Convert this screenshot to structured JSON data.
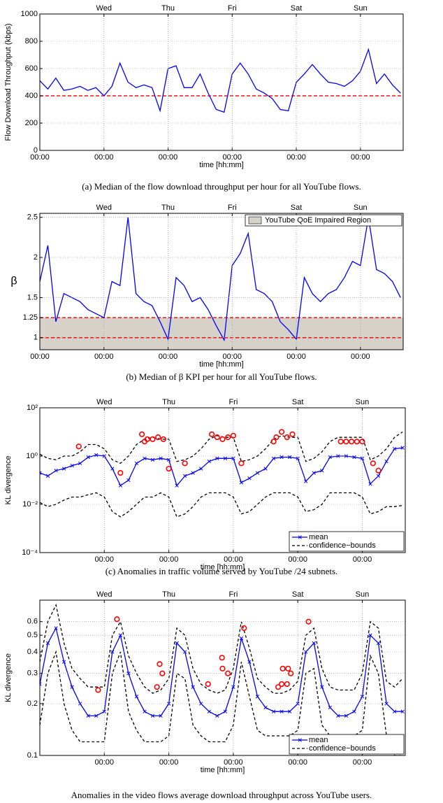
{
  "chart_data": [
    {
      "type": "line",
      "caption": "(a) Median of the flow download throughput per hour for all YouTube flows.",
      "ylabel": "Flow Download Throughput (kbps)",
      "xlabel": "time [hh:mm]",
      "xlim": [
        0,
        136
      ],
      "ylim": [
        0,
        1000
      ],
      "yticks": [
        0,
        200,
        400,
        600,
        800,
        1000
      ],
      "xticks": [
        {
          "value": 0,
          "label": "00:00"
        },
        {
          "value": 24,
          "label": "00:00"
        },
        {
          "value": 48,
          "label": "00:00"
        },
        {
          "value": 72,
          "label": "00:00"
        },
        {
          "value": 96,
          "label": "00:00"
        },
        {
          "value": 120,
          "label": "00:00"
        }
      ],
      "x2ticks": [
        {
          "value": 24,
          "label": "Wed"
        },
        {
          "value": 48,
          "label": "Thu"
        },
        {
          "value": 72,
          "label": "Fri"
        },
        {
          "value": 96,
          "label": "Sat"
        },
        {
          "value": 120,
          "label": "Sun"
        }
      ],
      "grid": true,
      "hlines": [
        400
      ],
      "hline_color": "#ff0000",
      "x": [
        0,
        3,
        6,
        9,
        12,
        15,
        18,
        21,
        24,
        27,
        30,
        33,
        36,
        39,
        42,
        45,
        48,
        51,
        54,
        57,
        60,
        63,
        66,
        69,
        72,
        75,
        78,
        81,
        84,
        87,
        90,
        93,
        96,
        99,
        102,
        105,
        108,
        111,
        114,
        117,
        120,
        123,
        126,
        129,
        132,
        135
      ],
      "series": [
        {
          "color": "#0000ff",
          "values": [
            510,
            450,
            530,
            440,
            450,
            470,
            440,
            460,
            400,
            470,
            640,
            500,
            460,
            480,
            460,
            290,
            600,
            620,
            460,
            460,
            560,
            420,
            300,
            280,
            560,
            640,
            560,
            450,
            420,
            380,
            300,
            290,
            500,
            560,
            630,
            560,
            500,
            490,
            470,
            510,
            580,
            740,
            490,
            560,
            480,
            420
          ]
        }
      ]
    },
    {
      "type": "line",
      "caption": "(b) Median of β KPI per hour for all YouTube flows.",
      "ylabel": "β",
      "xlabel": "time [hh:mm]",
      "xlim": [
        0,
        136
      ],
      "ylim": [
        0.85,
        2.55
      ],
      "yticks": [
        1,
        1.25,
        1.5,
        2,
        2.5
      ],
      "xticks": [
        {
          "value": 0,
          "label": "00:00"
        },
        {
          "value": 24,
          "label": "00:00"
        },
        {
          "value": 48,
          "label": "00:00"
        },
        {
          "value": 72,
          "label": "00:00"
        },
        {
          "value": 96,
          "label": "00:00"
        },
        {
          "value": 120,
          "label": "00:00"
        }
      ],
      "x2ticks": [
        {
          "value": 24,
          "label": "Wed"
        },
        {
          "value": 48,
          "label": "Thu"
        },
        {
          "value": 72,
          "label": "Fri"
        },
        {
          "value": 96,
          "label": "Sat"
        },
        {
          "value": 120,
          "label": "Sun"
        }
      ],
      "grid": true,
      "hlines": [
        1,
        1.25
      ],
      "hline_color": "#ff0000",
      "legend": "upper right",
      "region": {
        "name": "YouTube QoE Impaired Region",
        "upper": 1.25,
        "color": "#d6d1c9"
      },
      "x": [
        0,
        3,
        6,
        9,
        12,
        15,
        18,
        21,
        24,
        27,
        30,
        33,
        36,
        39,
        42,
        45,
        48,
        51,
        54,
        57,
        60,
        63,
        66,
        69,
        72,
        75,
        78,
        81,
        84,
        87,
        90,
        93,
        96,
        99,
        102,
        105,
        108,
        111,
        114,
        117,
        120,
        123,
        126,
        129,
        132,
        135
      ],
      "series": [
        {
          "color": "#0000ff",
          "values": [
            1.7,
            2.15,
            1.2,
            1.55,
            1.5,
            1.45,
            1.35,
            1.3,
            1.25,
            1.7,
            1.65,
            2.5,
            1.55,
            1.45,
            1.4,
            1.2,
            0.98,
            1.75,
            1.65,
            1.45,
            1.5,
            1.35,
            1.15,
            0.97,
            1.9,
            2.05,
            2.3,
            1.6,
            1.55,
            1.45,
            1.2,
            1.1,
            0.98,
            1.75,
            1.55,
            1.45,
            1.55,
            1.6,
            1.75,
            1.95,
            1.9,
            2.5,
            1.85,
            1.8,
            1.7,
            1.5
          ]
        }
      ]
    },
    {
      "type": "line",
      "caption": "(c) Anomalies in traffic volume served by YouTube /24 subnets.",
      "ylabel": "KL divergence",
      "xlabel": "time [hh:mm]",
      "yscale": "log",
      "xlim": [
        0,
        136
      ],
      "ylim": [
        0.0001,
        100
      ],
      "yticks": [
        {
          "value": 0.0001,
          "label": "10⁻⁴"
        },
        {
          "value": 0.01,
          "label": "10⁻²"
        },
        {
          "value": 1,
          "label": "10⁰"
        },
        {
          "value": 100,
          "label": "10²"
        }
      ],
      "xticks": [
        {
          "value": 24,
          "label": "00:00"
        },
        {
          "value": 48,
          "label": "00:00"
        },
        {
          "value": 72,
          "label": "00:00"
        },
        {
          "value": 96,
          "label": "00:00"
        },
        {
          "value": 120,
          "label": "00:00"
        }
      ],
      "x2ticks": [
        {
          "value": 24,
          "label": "Wed"
        },
        {
          "value": 48,
          "label": "Thu"
        },
        {
          "value": 72,
          "label": "Fri"
        },
        {
          "value": 96,
          "label": "Sat"
        },
        {
          "value": 120,
          "label": "Sun"
        }
      ],
      "grid": true,
      "legend": "lower right",
      "x": [
        0,
        3,
        6,
        9,
        12,
        15,
        18,
        21,
        24,
        27,
        30,
        33,
        36,
        39,
        42,
        45,
        48,
        51,
        54,
        57,
        60,
        63,
        66,
        69,
        72,
        75,
        78,
        81,
        84,
        87,
        90,
        93,
        96,
        99,
        102,
        105,
        108,
        111,
        114,
        117,
        120,
        123,
        126,
        129,
        132,
        135
      ],
      "series": [
        {
          "name": "mean",
          "color": "#0000ff",
          "marker": "x",
          "values": [
            0.2,
            0.15,
            0.25,
            0.3,
            0.4,
            0.5,
            0.9,
            1.1,
            1.0,
            0.3,
            0.06,
            0.1,
            0.5,
            0.8,
            0.7,
            0.8,
            0.7,
            0.06,
            0.15,
            0.2,
            0.3,
            0.6,
            0.8,
            0.8,
            0.8,
            0.08,
            0.12,
            0.2,
            0.3,
            0.8,
            0.9,
            0.9,
            0.8,
            0.09,
            0.2,
            0.25,
            0.9,
            1.0,
            1.0,
            0.9,
            0.8,
            0.07,
            0.15,
            0.6,
            2.0,
            2.2
          ]
        },
        {
          "name": "confidence−bounds",
          "color": "#000000",
          "dash": true,
          "values": [
            1.2,
            0.8,
            0.7,
            1.0,
            1.0,
            1.5,
            3,
            3,
            2,
            0.7,
            0.5,
            1,
            3,
            5,
            6,
            5,
            5,
            0.6,
            0.7,
            1,
            2,
            5,
            7,
            6,
            6,
            0.6,
            0.7,
            1,
            2,
            5,
            7,
            6,
            6,
            0.6,
            0.8,
            1.5,
            4,
            6,
            6,
            6,
            6,
            0.7,
            1,
            2,
            6,
            10
          ],
          "lower": [
            0.012,
            0.008,
            0.01,
            0.015,
            0.02,
            0.02,
            0.025,
            0.03,
            0.02,
            0.005,
            0.003,
            0.005,
            0.01,
            0.02,
            0.02,
            0.03,
            0.02,
            0.003,
            0.004,
            0.008,
            0.02,
            0.03,
            0.03,
            0.03,
            0.02,
            0.004,
            0.005,
            0.01,
            0.02,
            0.03,
            0.03,
            0.03,
            0.02,
            0.005,
            0.006,
            0.01,
            0.03,
            0.03,
            0.03,
            0.03,
            0.02,
            0.004,
            0.005,
            0.008,
            0.008,
            0.009
          ]
        }
      ],
      "anomalies": {
        "color": "#ff0000",
        "x": [
          14.5,
          30,
          38,
          39,
          40,
          42,
          44,
          46,
          48,
          54,
          64,
          66,
          68,
          70,
          72,
          75,
          87,
          88,
          90,
          92,
          94,
          112,
          114,
          116,
          118,
          120,
          124,
          126
        ],
        "values": [
          2.5,
          0.2,
          8,
          4,
          5,
          5,
          6,
          5,
          0.3,
          0.5,
          8,
          6,
          5,
          6,
          7,
          0.5,
          4,
          6,
          10,
          6,
          8,
          4,
          4,
          4,
          4,
          4,
          0.5,
          0.25
        ]
      }
    },
    {
      "type": "line",
      "caption": "Anomalies in the video flows average download throughput across YouTube users.",
      "ylabel": "KL divergence",
      "xlabel": "time [hh:mm]",
      "yscale": "log",
      "xlim": [
        0,
        136
      ],
      "ylim": [
        0.1,
        0.8
      ],
      "yticks": [
        0.1,
        0.2,
        0.3,
        0.4,
        0.5,
        0.6
      ],
      "xticks": [
        {
          "value": 24,
          "label": "00:00"
        },
        {
          "value": 48,
          "label": "00:00"
        },
        {
          "value": 72,
          "label": "00:00"
        },
        {
          "value": 96,
          "label": "00:00"
        },
        {
          "value": 120,
          "label": "00:00"
        }
      ],
      "x2ticks": [
        {
          "value": 24,
          "label": "Wed"
        },
        {
          "value": 48,
          "label": "Thu"
        },
        {
          "value": 72,
          "label": "Fri"
        },
        {
          "value": 96,
          "label": "Sat"
        },
        {
          "value": 120,
          "label": "Sun"
        }
      ],
      "grid": true,
      "legend": "lower right",
      "x": [
        0,
        3,
        6,
        9,
        12,
        15,
        18,
        21,
        24,
        27,
        30,
        33,
        36,
        39,
        42,
        45,
        48,
        51,
        54,
        57,
        60,
        63,
        66,
        69,
        72,
        75,
        78,
        81,
        84,
        87,
        90,
        93,
        96,
        99,
        102,
        105,
        108,
        111,
        114,
        117,
        120,
        123,
        126,
        129,
        132,
        135
      ],
      "series": [
        {
          "name": "mean",
          "color": "#0000ff",
          "marker": "x",
          "values": [
            0.26,
            0.45,
            0.55,
            0.35,
            0.25,
            0.2,
            0.17,
            0.17,
            0.18,
            0.4,
            0.5,
            0.3,
            0.22,
            0.18,
            0.17,
            0.17,
            0.2,
            0.45,
            0.4,
            0.25,
            0.2,
            0.18,
            0.17,
            0.18,
            0.25,
            0.48,
            0.35,
            0.22,
            0.19,
            0.18,
            0.18,
            0.18,
            0.2,
            0.4,
            0.45,
            0.25,
            0.19,
            0.17,
            0.17,
            0.18,
            0.22,
            0.5,
            0.45,
            0.2,
            0.18,
            0.18
          ]
        },
        {
          "name": "confidence−bounds",
          "color": "#000000",
          "dash": true,
          "values": [
            0.35,
            0.6,
            0.75,
            0.45,
            0.32,
            0.28,
            0.25,
            0.25,
            0.25,
            0.5,
            0.6,
            0.38,
            0.3,
            0.25,
            0.23,
            0.24,
            0.28,
            0.55,
            0.5,
            0.32,
            0.26,
            0.24,
            0.23,
            0.24,
            0.32,
            0.6,
            0.42,
            0.28,
            0.25,
            0.23,
            0.23,
            0.24,
            0.27,
            0.5,
            0.55,
            0.32,
            0.25,
            0.24,
            0.24,
            0.24,
            0.3,
            0.6,
            0.55,
            0.27,
            0.25,
            0.28
          ],
          "lower": [
            0.15,
            0.3,
            0.4,
            0.2,
            0.14,
            0.12,
            0.12,
            0.12,
            0.12,
            0.3,
            0.4,
            0.18,
            0.14,
            0.12,
            0.12,
            0.12,
            0.13,
            0.3,
            0.28,
            0.15,
            0.13,
            0.12,
            0.12,
            0.12,
            0.15,
            0.35,
            0.22,
            0.14,
            0.13,
            0.13,
            0.13,
            0.13,
            0.14,
            0.3,
            0.32,
            0.15,
            0.13,
            0.13,
            0.13,
            0.13,
            0.14,
            0.38,
            0.3,
            0.13,
            0.1,
            0.1
          ]
        }
      ],
      "anomalies": {
        "color": "#ff0000",
        "x": [
          21.7,
          28.7,
          43.6,
          44.6,
          45.6,
          62.6,
          67.8,
          68,
          70,
          76,
          88.7,
          90,
          92,
          90.4,
          92.4,
          93.4,
          100
        ],
        "values": [
          0.24,
          0.62,
          0.25,
          0.34,
          0.3,
          0.26,
          0.37,
          0.32,
          0.3,
          0.55,
          0.25,
          0.26,
          0.26,
          0.32,
          0.32,
          0.3,
          0.6
        ]
      }
    }
  ]
}
